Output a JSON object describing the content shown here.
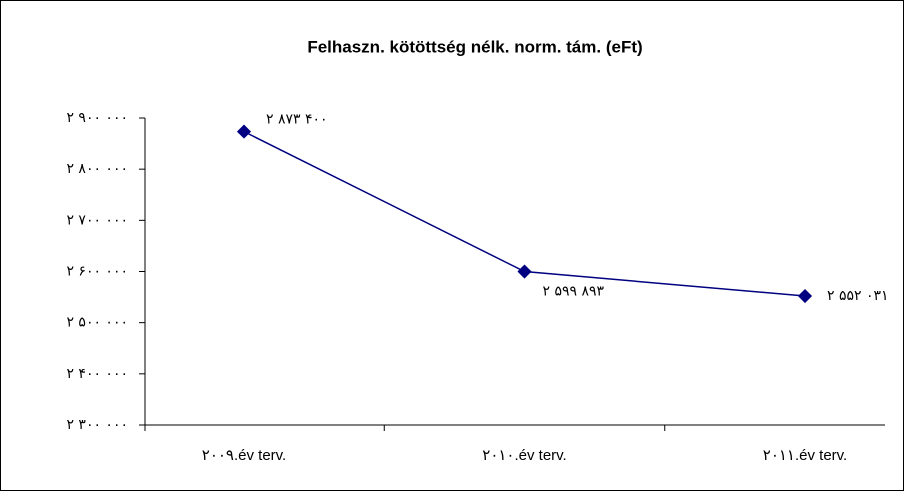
{
  "chart_data": {
    "type": "line",
    "title": "Felhaszn. kötöttség nélk. norm. tám. (eFt)",
    "categories": [
      "۲۰۰۹.év terv.",
      "۲۰۱۰.év terv.",
      "۲۰۱۱.év terv."
    ],
    "series": [
      {
        "name": "Felhaszn. kötöttség nélk. norm. tám. (eFt)",
        "color": "#000080",
        "values": [
          2873400,
          2599893,
          2552031
        ],
        "value_labels": [
          "۲ ۸۷۳ ۴۰۰",
          "۲ ۵۹۹ ۸۹۳",
          "۲ ۵۵۲ ۰۳۱"
        ]
      }
    ],
    "ylim": [
      2300000,
      2900000
    ],
    "yticks": [
      {
        "value": 2300000,
        "label": "۲ ۳۰۰ ۰۰۰"
      },
      {
        "value": 2400000,
        "label": "۲ ۴۰۰ ۰۰۰"
      },
      {
        "value": 2500000,
        "label": "۲ ۵۰۰ ۰۰۰"
      },
      {
        "value": 2600000,
        "label": "۲ ۶۰۰ ۰۰۰"
      },
      {
        "value": 2700000,
        "label": "۲ ۷۰۰ ۰۰۰"
      },
      {
        "value": 2800000,
        "label": "۲ ۸۰۰ ۰۰۰"
      },
      {
        "value": 2900000,
        "label": "۲ ۹۰۰ ۰۰۰"
      }
    ],
    "grid": false
  }
}
